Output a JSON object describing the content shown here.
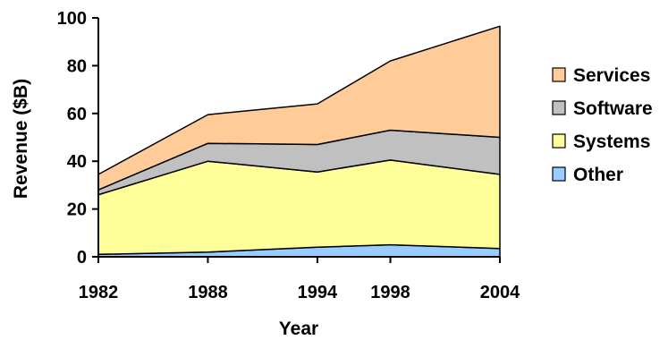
{
  "chart_data": {
    "type": "area",
    "stacked": true,
    "x": [
      1982,
      1988,
      1994,
      1998,
      2004
    ],
    "xticks": [
      "1982",
      "1988",
      "1994",
      "1998",
      "2004"
    ],
    "yticks": [
      "0",
      "20",
      "40",
      "60",
      "80",
      "100"
    ],
    "ylim": [
      0,
      100
    ],
    "xlabel": "Year",
    "ylabel": "Revenue ($B)",
    "legend_position": "right",
    "series": [
      {
        "name": "Other",
        "color": "#99ccff",
        "values": [
          1,
          2,
          4,
          5,
          3.5
        ]
      },
      {
        "name": "Systems",
        "color": "#ffff99",
        "values": [
          25,
          38,
          31.5,
          35.5,
          31
        ]
      },
      {
        "name": "Software",
        "color": "#c0c0c0",
        "values": [
          2,
          7.5,
          11.5,
          12.5,
          15.5
        ]
      },
      {
        "name": "Services",
        "color": "#ffcc99",
        "values": [
          6.5,
          12,
          17,
          29,
          46.5
        ]
      }
    ]
  }
}
